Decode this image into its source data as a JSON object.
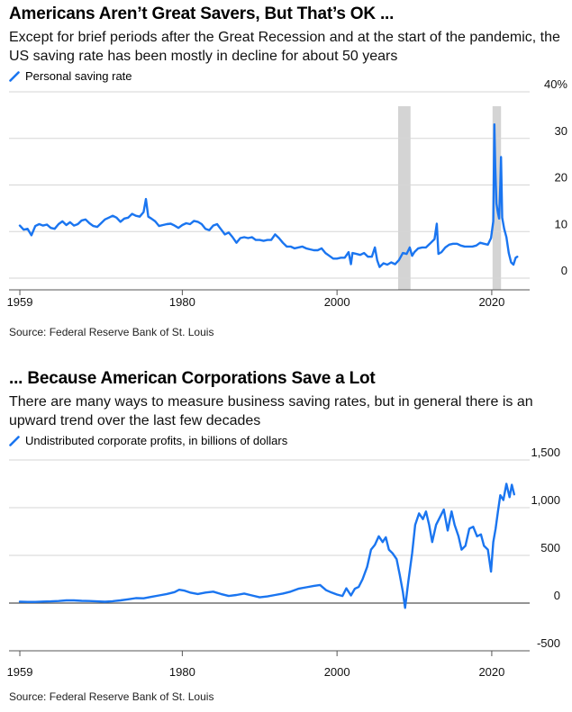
{
  "chart_data": [
    {
      "type": "line",
      "title": "Americans Aren’t Great Savers, But That’s OK ...",
      "subtitle": "Except for brief periods after the Great Recession and at the start of the pandemic, the US saving rate has been mostly in decline for about 50 years",
      "source": "Source: Federal Reserve Bank of St. Louis",
      "series": [
        {
          "name": "Personal saving rate",
          "color": "#1a75f0",
          "points": [
            [
              1959.0,
              11.3
            ],
            [
              1959.5,
              10.4
            ],
            [
              1960.0,
              10.6
            ],
            [
              1960.5,
              9.2
            ],
            [
              1961.0,
              11.2
            ],
            [
              1961.5,
              11.6
            ],
            [
              1962.0,
              11.3
            ],
            [
              1962.5,
              11.5
            ],
            [
              1963.0,
              10.8
            ],
            [
              1963.5,
              10.6
            ],
            [
              1964.0,
              11.6
            ],
            [
              1964.5,
              12.2
            ],
            [
              1965.0,
              11.4
            ],
            [
              1965.5,
              12.0
            ],
            [
              1966.0,
              11.3
            ],
            [
              1966.5,
              11.6
            ],
            [
              1967.0,
              12.4
            ],
            [
              1967.5,
              12.6
            ],
            [
              1968.0,
              11.8
            ],
            [
              1968.5,
              11.2
            ],
            [
              1969.0,
              11.0
            ],
            [
              1969.5,
              11.8
            ],
            [
              1970.0,
              12.6
            ],
            [
              1970.5,
              13.0
            ],
            [
              1971.0,
              13.4
            ],
            [
              1971.5,
              13.0
            ],
            [
              1972.0,
              12.1
            ],
            [
              1972.5,
              12.8
            ],
            [
              1973.0,
              13.0
            ],
            [
              1973.5,
              13.8
            ],
            [
              1974.0,
              13.4
            ],
            [
              1974.5,
              13.2
            ],
            [
              1975.0,
              14.2
            ],
            [
              1975.3,
              17.0
            ],
            [
              1975.6,
              13.2
            ],
            [
              1976.0,
              12.8
            ],
            [
              1976.5,
              12.2
            ],
            [
              1977.0,
              11.2
            ],
            [
              1977.5,
              11.4
            ],
            [
              1978.0,
              11.6
            ],
            [
              1978.5,
              11.7
            ],
            [
              1979.0,
              11.3
            ],
            [
              1979.5,
              10.8
            ],
            [
              1980.0,
              11.4
            ],
            [
              1980.5,
              11.8
            ],
            [
              1981.0,
              11.6
            ],
            [
              1981.5,
              12.3
            ],
            [
              1982.0,
              12.1
            ],
            [
              1982.5,
              11.6
            ],
            [
              1983.0,
              10.6
            ],
            [
              1983.5,
              10.3
            ],
            [
              1984.0,
              11.3
            ],
            [
              1984.5,
              11.6
            ],
            [
              1985.0,
              10.5
            ],
            [
              1985.5,
              9.4
            ],
            [
              1986.0,
              9.8
            ],
            [
              1986.5,
              8.8
            ],
            [
              1987.0,
              7.6
            ],
            [
              1987.5,
              8.6
            ],
            [
              1988.0,
              8.8
            ],
            [
              1988.5,
              8.6
            ],
            [
              1989.0,
              8.8
            ],
            [
              1989.5,
              8.2
            ],
            [
              1990.0,
              8.2
            ],
            [
              1990.5,
              8.0
            ],
            [
              1991.0,
              8.2
            ],
            [
              1991.5,
              8.2
            ],
            [
              1992.0,
              9.4
            ],
            [
              1992.5,
              8.6
            ],
            [
              1993.0,
              7.6
            ],
            [
              1993.5,
              6.8
            ],
            [
              1994.0,
              6.8
            ],
            [
              1994.5,
              6.4
            ],
            [
              1995.0,
              6.6
            ],
            [
              1995.5,
              6.8
            ],
            [
              1996.0,
              6.4
            ],
            [
              1996.5,
              6.2
            ],
            [
              1997.0,
              6.0
            ],
            [
              1997.5,
              6.0
            ],
            [
              1998.0,
              6.4
            ],
            [
              1998.5,
              5.4
            ],
            [
              1999.0,
              4.8
            ],
            [
              1999.5,
              4.2
            ],
            [
              2000.0,
              4.2
            ],
            [
              2000.5,
              4.4
            ],
            [
              2001.0,
              4.4
            ],
            [
              2001.5,
              5.6
            ],
            [
              2001.8,
              3.0
            ],
            [
              2002.0,
              5.4
            ],
            [
              2002.5,
              5.2
            ],
            [
              2003.0,
              5.0
            ],
            [
              2003.5,
              5.4
            ],
            [
              2004.0,
              4.6
            ],
            [
              2004.5,
              4.6
            ],
            [
              2004.9,
              6.6
            ],
            [
              2005.2,
              3.8
            ],
            [
              2005.5,
              2.4
            ],
            [
              2006.0,
              3.2
            ],
            [
              2006.5,
              2.9
            ],
            [
              2007.0,
              3.4
            ],
            [
              2007.5,
              3.0
            ],
            [
              2008.0,
              3.9
            ],
            [
              2008.5,
              5.4
            ],
            [
              2009.0,
              5.2
            ],
            [
              2009.4,
              6.6
            ],
            [
              2009.7,
              4.8
            ],
            [
              2010.0,
              5.6
            ],
            [
              2010.5,
              6.4
            ],
            [
              2011.0,
              6.6
            ],
            [
              2011.5,
              6.6
            ],
            [
              2012.0,
              7.4
            ],
            [
              2012.6,
              8.4
            ],
            [
              2012.9,
              11.7
            ],
            [
              2013.1,
              5.2
            ],
            [
              2013.5,
              5.6
            ],
            [
              2014.0,
              6.6
            ],
            [
              2014.5,
              7.2
            ],
            [
              2015.0,
              7.4
            ],
            [
              2015.5,
              7.4
            ],
            [
              2016.0,
              7.0
            ],
            [
              2016.5,
              6.8
            ],
            [
              2017.0,
              6.8
            ],
            [
              2017.5,
              6.8
            ],
            [
              2018.0,
              7.0
            ],
            [
              2018.5,
              7.6
            ],
            [
              2019.0,
              7.4
            ],
            [
              2019.5,
              7.2
            ],
            [
              2019.9,
              8.6
            ],
            [
              2020.2,
              12.2
            ],
            [
              2020.33,
              33.0
            ],
            [
              2020.45,
              24.0
            ],
            [
              2020.6,
              16.0
            ],
            [
              2020.8,
              14.0
            ],
            [
              2020.95,
              12.8
            ],
            [
              2021.1,
              20.0
            ],
            [
              2021.2,
              26.0
            ],
            [
              2021.35,
              13.0
            ],
            [
              2021.6,
              10.6
            ],
            [
              2021.9,
              8.8
            ],
            [
              2022.2,
              5.4
            ],
            [
              2022.5,
              3.4
            ],
            [
              2022.8,
              2.9
            ],
            [
              2023.1,
              4.4
            ],
            [
              2023.3,
              4.6
            ]
          ]
        }
      ],
      "x_ticks": [
        {
          "value": 1959,
          "label": "1959"
        },
        {
          "value": 1980,
          "label": "1980"
        },
        {
          "value": 2000,
          "label": "2000"
        },
        {
          "value": 2020,
          "label": "2020"
        }
      ],
      "y_ticks": [
        {
          "value": 0,
          "label": "0"
        },
        {
          "value": 10,
          "label": "10"
        },
        {
          "value": 20,
          "label": "20"
        },
        {
          "value": 30,
          "label": "30"
        },
        {
          "value": 40,
          "label": "40%"
        }
      ],
      "xlim": [
        1957.6,
        2024.9
      ],
      "ylim": [
        -2.5,
        40
      ],
      "recessions": [
        [
          2007.9,
          2009.5
        ],
        [
          2020.1,
          2021.2
        ]
      ],
      "grid": true,
      "legend_position": "top-left"
    },
    {
      "type": "line",
      "title": "... Because American Corporations Save a Lot",
      "subtitle": "There are many ways to measure business saving rates, but in general there is an upward trend over the last few decades",
      "source": "Source: Federal Reserve Bank of St. Louis",
      "series": [
        {
          "name": "Undistributed corporate profits, in billions of dollars",
          "color": "#1a75f0",
          "points": [
            [
              1959.0,
              15
            ],
            [
              1960.0,
              12
            ],
            [
              1961.0,
              12
            ],
            [
              1962.0,
              16
            ],
            [
              1963.0,
              18
            ],
            [
              1964.0,
              22
            ],
            [
              1965.0,
              28
            ],
            [
              1966.0,
              28
            ],
            [
              1967.0,
              24
            ],
            [
              1968.0,
              22
            ],
            [
              1969.0,
              18
            ],
            [
              1970.0,
              14
            ],
            [
              1971.0,
              20
            ],
            [
              1972.0,
              28
            ],
            [
              1973.0,
              40
            ],
            [
              1974.0,
              52
            ],
            [
              1975.0,
              50
            ],
            [
              1976.0,
              65
            ],
            [
              1977.0,
              80
            ],
            [
              1978.0,
              95
            ],
            [
              1979.0,
              115
            ],
            [
              1979.6,
              140
            ],
            [
              1980.3,
              130
            ],
            [
              1981.0,
              110
            ],
            [
              1982.0,
              95
            ],
            [
              1983.0,
              110
            ],
            [
              1984.0,
              120
            ],
            [
              1985.0,
              95
            ],
            [
              1986.0,
              75
            ],
            [
              1987.0,
              85
            ],
            [
              1988.0,
              100
            ],
            [
              1989.0,
              80
            ],
            [
              1990.0,
              60
            ],
            [
              1991.0,
              70
            ],
            [
              1992.0,
              85
            ],
            [
              1993.0,
              100
            ],
            [
              1994.0,
              120
            ],
            [
              1995.0,
              150
            ],
            [
              1996.0,
              165
            ],
            [
              1997.0,
              180
            ],
            [
              1997.8,
              190
            ],
            [
              1998.6,
              135
            ],
            [
              1999.3,
              110
            ],
            [
              2000.0,
              90
            ],
            [
              2000.7,
              75
            ],
            [
              2001.2,
              155
            ],
            [
              2001.8,
              80
            ],
            [
              2002.3,
              150
            ],
            [
              2002.8,
              170
            ],
            [
              2003.3,
              250
            ],
            [
              2003.9,
              380
            ],
            [
              2004.4,
              560
            ],
            [
              2004.9,
              610
            ],
            [
              2005.4,
              700
            ],
            [
              2005.9,
              640
            ],
            [
              2006.3,
              690
            ],
            [
              2006.7,
              560
            ],
            [
              2007.2,
              520
            ],
            [
              2007.7,
              460
            ],
            [
              2008.1,
              300
            ],
            [
              2008.5,
              120
            ],
            [
              2008.8,
              -50
            ],
            [
              2009.2,
              220
            ],
            [
              2009.7,
              520
            ],
            [
              2010.1,
              820
            ],
            [
              2010.6,
              940
            ],
            [
              2011.1,
              880
            ],
            [
              2011.5,
              960
            ],
            [
              2011.9,
              820
            ],
            [
              2012.3,
              640
            ],
            [
              2012.8,
              820
            ],
            [
              2013.3,
              900
            ],
            [
              2013.8,
              980
            ],
            [
              2014.3,
              760
            ],
            [
              2014.8,
              960
            ],
            [
              2015.2,
              820
            ],
            [
              2015.7,
              700
            ],
            [
              2016.1,
              560
            ],
            [
              2016.6,
              600
            ],
            [
              2017.1,
              780
            ],
            [
              2017.6,
              800
            ],
            [
              2018.1,
              700
            ],
            [
              2018.6,
              720
            ],
            [
              2019.0,
              600
            ],
            [
              2019.5,
              560
            ],
            [
              2019.9,
              330
            ],
            [
              2020.2,
              640
            ],
            [
              2020.5,
              780
            ],
            [
              2020.8,
              960
            ],
            [
              2021.1,
              1130
            ],
            [
              2021.5,
              1080
            ],
            [
              2021.9,
              1250
            ],
            [
              2022.3,
              1110
            ],
            [
              2022.6,
              1240
            ],
            [
              2022.9,
              1140
            ]
          ]
        }
      ],
      "x_ticks": [
        {
          "value": 1959,
          "label": "1959"
        },
        {
          "value": 1980,
          "label": "1980"
        },
        {
          "value": 2000,
          "label": "2000"
        },
        {
          "value": 2020,
          "label": "2020"
        }
      ],
      "y_ticks": [
        {
          "value": -500,
          "label": "-500"
        },
        {
          "value": 0,
          "label": "0"
        },
        {
          "value": 500,
          "label": "500"
        },
        {
          "value": 1000,
          "label": "1,000"
        },
        {
          "value": 1500,
          "label": "1,500"
        }
      ],
      "xlim": [
        1957.6,
        2024.9
      ],
      "ylim": [
        -500,
        1500
      ],
      "zero_line": true,
      "grid": true,
      "legend_position": "top-left"
    }
  ]
}
